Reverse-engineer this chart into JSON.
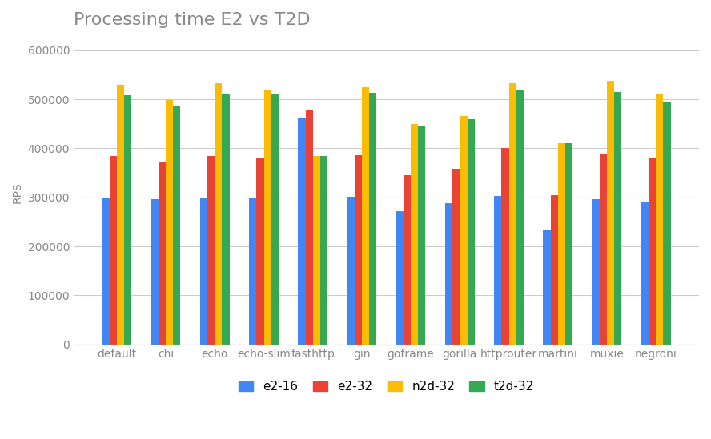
{
  "title": "Processing time E2 vs T2D",
  "ylabel": "RPS",
  "categories": [
    "default",
    "chi",
    "echo",
    "echo-slim",
    "fasthttp",
    "gin",
    "goframe",
    "gorilla",
    "httprouter",
    "martini",
    "muxie",
    "negroni"
  ],
  "series": {
    "e2-16": [
      300000,
      296000,
      298000,
      300000,
      462000,
      301000,
      272000,
      288000,
      303000,
      233000,
      296000,
      292000
    ],
    "e2-32": [
      385000,
      372000,
      384000,
      381000,
      478000,
      386000,
      345000,
      358000,
      400000,
      305000,
      388000,
      381000
    ],
    "n2d-32": [
      530000,
      498000,
      533000,
      518000,
      385000,
      525000,
      450000,
      465000,
      533000,
      410000,
      537000,
      511000
    ],
    "t2d-32": [
      508000,
      485000,
      510000,
      510000,
      385000,
      513000,
      447000,
      460000,
      520000,
      410000,
      514000,
      494000
    ]
  },
  "colors": {
    "e2-16": "#4285F4",
    "e2-32": "#EA4335",
    "n2d-32": "#FBBC04",
    "t2d-32": "#34A853"
  },
  "ylim": [
    0,
    620000
  ],
  "yticks": [
    0,
    100000,
    200000,
    300000,
    400000,
    500000,
    600000
  ],
  "background_color": "#ffffff",
  "grid_color": "#cccccc",
  "title_fontsize": 16,
  "axis_fontsize": 10,
  "legend_fontsize": 11,
  "bar_width": 0.15,
  "title_color": "#888888"
}
